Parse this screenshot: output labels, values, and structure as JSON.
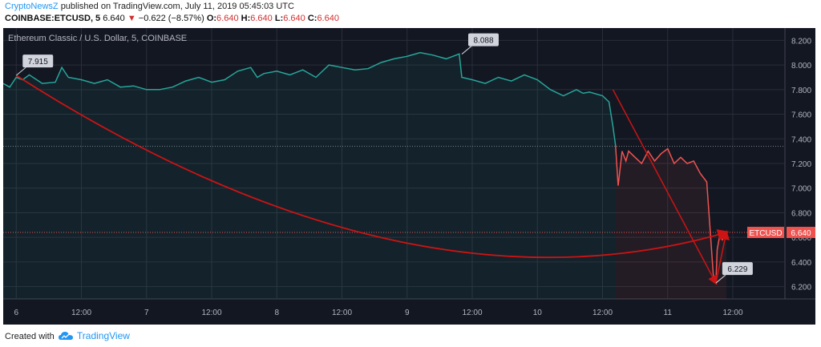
{
  "header": {
    "publisher": "CryptoNewsZ",
    "published_text": "published on TradingView.com, July 11, 2019 05:45:03 UTC",
    "symbol": "COINBASE:ETCUSD, 5",
    "last": "6.640",
    "arrow": "▼",
    "change": "−0.622 (−8.57%)",
    "o_label": "O:",
    "o": "6.640",
    "h_label": "H:",
    "h": "6.640",
    "l_label": "L:",
    "l": "6.640",
    "c_label": "C:",
    "c": "6.640"
  },
  "footer": {
    "created_with": "Created with",
    "brand": "TradingView"
  },
  "colors": {
    "bg": "#131722",
    "up": "#26a69a",
    "down": "#ef5350",
    "arrow": "#cc1414",
    "grid": "#2a2e39",
    "axis_text": "#b2b5be"
  },
  "chart_data": {
    "type": "line",
    "title": "Ethereum Classic / U.S. Dollar, 5, COINBASE",
    "ylim": [
      6.1,
      8.3
    ],
    "yticks": [
      "8.200",
      "8.000",
      "7.800",
      "7.600",
      "7.400",
      "7.200",
      "7.000",
      "6.800",
      "6.600",
      "6.400",
      "6.200"
    ],
    "xlim": [
      5.9,
      11.9
    ],
    "xticks": [
      {
        "x": 6.0,
        "label": "6"
      },
      {
        "x": 6.5,
        "label": "12:00"
      },
      {
        "x": 7.0,
        "label": "7"
      },
      {
        "x": 7.5,
        "label": "12:00"
      },
      {
        "x": 8.0,
        "label": "8"
      },
      {
        "x": 8.5,
        "label": "12:00"
      },
      {
        "x": 9.0,
        "label": "9"
      },
      {
        "x": 9.5,
        "label": "12:00"
      },
      {
        "x": 10.0,
        "label": "10"
      },
      {
        "x": 10.5,
        "label": "12:00"
      },
      {
        "x": 11.0,
        "label": "11"
      },
      {
        "x": 11.5,
        "label": "12:00"
      }
    ],
    "series": [
      {
        "name": "",
        "color": "#26a69a",
        "x": [
          5.9,
          5.95,
          6.0,
          6.05,
          6.1,
          6.2,
          6.3,
          6.35,
          6.4,
          6.5,
          6.6,
          6.7,
          6.8,
          6.9,
          7.0,
          7.1,
          7.2,
          7.3,
          7.4,
          7.5,
          7.6,
          7.7,
          7.8,
          7.85,
          7.9,
          8.0,
          8.1,
          8.2,
          8.3,
          8.4,
          8.5,
          8.6,
          8.7,
          8.8,
          8.9,
          9.0,
          9.1,
          9.2,
          9.3,
          9.4,
          9.42,
          9.5,
          9.6,
          9.7,
          9.8,
          9.9,
          10.0,
          10.1,
          10.2,
          10.3,
          10.35,
          10.4,
          10.5,
          10.55,
          10.58,
          10.6
        ],
        "y": [
          7.85,
          7.82,
          7.9,
          7.88,
          7.92,
          7.85,
          7.86,
          7.98,
          7.9,
          7.88,
          7.85,
          7.88,
          7.82,
          7.83,
          7.8,
          7.8,
          7.82,
          7.87,
          7.9,
          7.86,
          7.88,
          7.95,
          7.98,
          7.9,
          7.93,
          7.95,
          7.92,
          7.96,
          7.9,
          8.0,
          7.98,
          7.96,
          7.97,
          8.02,
          8.05,
          8.07,
          8.1,
          8.08,
          8.05,
          8.09,
          7.9,
          7.88,
          7.85,
          7.9,
          7.87,
          7.92,
          7.88,
          7.8,
          7.75,
          7.8,
          7.77,
          7.78,
          7.75,
          7.7,
          7.5,
          7.35
        ]
      },
      {
        "name": "",
        "color": "#ef5350",
        "x": [
          10.6,
          10.62,
          10.65,
          10.68,
          10.7,
          10.75,
          10.8,
          10.85,
          10.9,
          10.95,
          11.0,
          11.05,
          11.1,
          11.15,
          11.2,
          11.25,
          11.3,
          11.33,
          11.35,
          11.37,
          11.38,
          11.4,
          11.42,
          11.45
        ],
        "y": [
          7.35,
          7.02,
          7.3,
          7.22,
          7.3,
          7.25,
          7.2,
          7.3,
          7.22,
          7.28,
          7.32,
          7.2,
          7.25,
          7.2,
          7.22,
          7.12,
          7.05,
          6.6,
          6.3,
          6.229,
          6.5,
          6.62,
          6.58,
          6.64
        ]
      }
    ],
    "annotations": [
      {
        "x": 6.0,
        "y": 7.915,
        "label": "7.915"
      },
      {
        "x": 9.42,
        "y": 8.088,
        "label": "8.088"
      },
      {
        "x": 11.37,
        "y": 6.229,
        "label": "6.229"
      }
    ],
    "drawings": [
      {
        "type": "curve",
        "points": [
          [
            6.0,
            7.915
          ],
          [
            9.0,
            6.28
          ],
          [
            11.45,
            6.64
          ]
        ]
      },
      {
        "type": "arrow",
        "from": [
          10.58,
          7.8
        ],
        "to": [
          11.37,
          6.229
        ]
      },
      {
        "type": "arrow",
        "from": [
          11.37,
          6.229
        ],
        "to": [
          11.45,
          6.64
        ]
      }
    ],
    "last_price_label": {
      "name": "ETCUSD",
      "value": "6.640",
      "y": 6.64
    },
    "grid": true
  }
}
